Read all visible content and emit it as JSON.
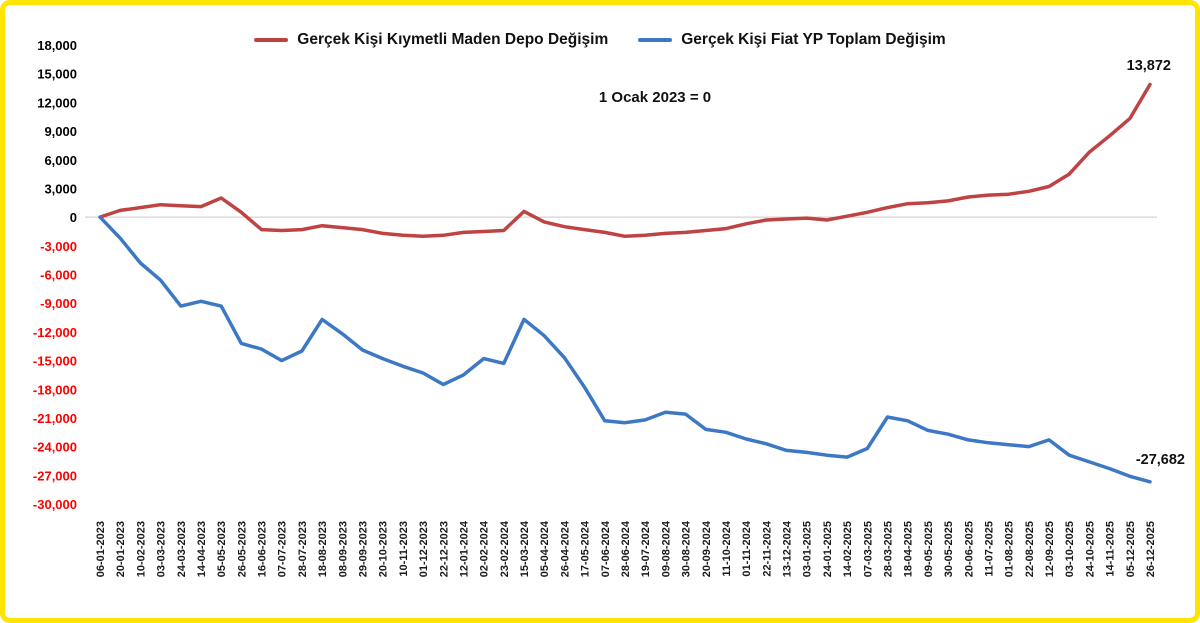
{
  "frame": {
    "border_color": "#ffe400",
    "background_color": "#ffffff"
  },
  "chart_data": {
    "type": "line",
    "title": "",
    "xlabel": "",
    "ylabel": "",
    "annotation": "1 Ocak 2023 = 0",
    "legend_position": "top-center",
    "grid": "zero-line-only",
    "zero_line_color": "#c9c9c9",
    "axis_colors": {
      "positive": "#000000",
      "negative": "#ff0000"
    },
    "ylim": [
      -30000,
      18000
    ],
    "ytick_step": 3000,
    "yticks": [
      18000,
      15000,
      12000,
      9000,
      6000,
      3000,
      0,
      -3000,
      -6000,
      -9000,
      -12000,
      -15000,
      -18000,
      -21000,
      -24000,
      -27000,
      -30000
    ],
    "categories": [
      "06-01-2023",
      "20-01-2023",
      "10-02-2023",
      "03-03-2023",
      "24-03-2023",
      "14-04-2023",
      "05-05-2023",
      "26-05-2023",
      "16-06-2023",
      "07-07-2023",
      "28-07-2023",
      "18-08-2023",
      "08-09-2023",
      "29-09-2023",
      "20-10-2023",
      "10-11-2023",
      "01-12-2023",
      "22-12-2023",
      "12-01-2024",
      "02-02-2024",
      "23-02-2024",
      "15-03-2024",
      "05-04-2024",
      "26-04-2024",
      "17-05-2024",
      "07-06-2024",
      "28-06-2024",
      "19-07-2024",
      "09-08-2024",
      "30-08-2024",
      "20-09-2024",
      "11-10-2024",
      "01-11-2024",
      "22-11-2024",
      "13-12-2024",
      "03-01-2025",
      "24-01-2025",
      "14-02-2025",
      "07-03-2025",
      "28-03-2025",
      "18-04-2025",
      "09-05-2025",
      "30-05-2025",
      "20-06-2025",
      "11-07-2025",
      "01-08-2025",
      "22-08-2025",
      "12-09-2025",
      "03-10-2025",
      "24-10-2025",
      "14-11-2025",
      "05-12-2025",
      "26-12-2025"
    ],
    "series": [
      {
        "name": "Gerçek Kişi Kıymetli Maden Depo Değişim",
        "color": "#bf4342",
        "values": [
          0,
          700,
          1000,
          1300,
          1200,
          1100,
          2000,
          500,
          -1300,
          -1400,
          -1300,
          -900,
          -1100,
          -1300,
          -1700,
          -1900,
          -2000,
          -1900,
          -1600,
          -1500,
          -1400,
          600,
          -500,
          -1000,
          -1300,
          -1600,
          -2000,
          -1900,
          -1700,
          -1600,
          -1400,
          -1200,
          -700,
          -300,
          -200,
          -100,
          -300,
          100,
          500,
          1000,
          1400,
          1500,
          1700,
          2100,
          2300,
          2400,
          2700,
          3200,
          4500,
          6800,
          8500,
          10300,
          13872
        ]
      },
      {
        "name": "Gerçek Kişi Fiat YP Toplam Değişim",
        "color": "#3c78c3",
        "values": [
          0,
          -2200,
          -4800,
          -6600,
          -9300,
          -8800,
          -9300,
          -13200,
          -13800,
          -15000,
          -14000,
          -10700,
          -12200,
          -13900,
          -14800,
          -15600,
          -16300,
          -17500,
          -16500,
          -14800,
          -15300,
          -10700,
          -12400,
          -14700,
          -17800,
          -21300,
          -21500,
          -21200,
          -20400,
          -20600,
          -22200,
          -22500,
          -23200,
          -23700,
          -24400,
          -24600,
          -24900,
          -25100,
          -24200,
          -20900,
          -21300,
          -22300,
          -22700,
          -23300,
          -23600,
          -23800,
          -24000,
          -23300,
          -24900,
          -25600,
          -26300,
          -27100,
          -27682
        ]
      }
    ],
    "end_labels": {
      "red": "13,872",
      "blue": "-27,682"
    }
  }
}
